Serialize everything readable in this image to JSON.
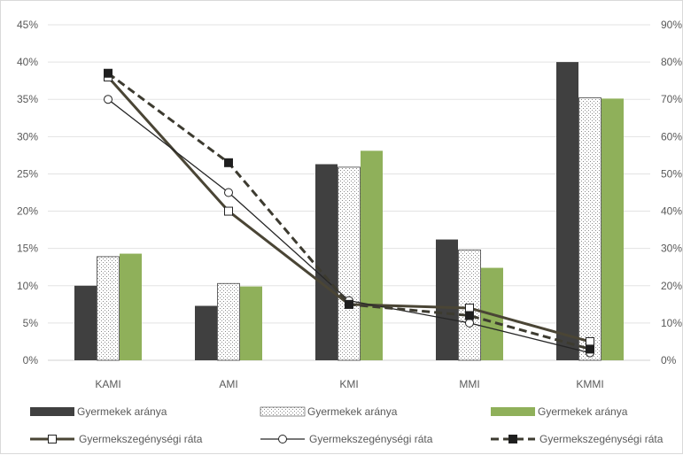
{
  "chart_data": {
    "type": "bar",
    "categories": [
      "KAMI",
      "AMI",
      "KMI",
      "MMI",
      "KMMI"
    ],
    "left_axis": {
      "ylim": [
        0,
        45
      ],
      "ticks": [
        "0%",
        "5%",
        "10%",
        "15%",
        "20%",
        "25%",
        "30%",
        "35%",
        "40%",
        "45%"
      ]
    },
    "right_axis": {
      "ylim": [
        0,
        90
      ],
      "ticks": [
        "0%",
        "10%",
        "20%",
        "30%",
        "40%",
        "50%",
        "60%",
        "70%",
        "80%",
        "90%"
      ]
    },
    "bar_series": [
      {
        "name": "Gyermekek aránya",
        "style": "solid-dark",
        "color": "#404040",
        "values": [
          10.0,
          7.3,
          26.3,
          16.2,
          40.0
        ]
      },
      {
        "name": "Gyermekek aránya",
        "style": "dotted-white",
        "color": "#ffffff",
        "values": [
          13.9,
          10.3,
          25.9,
          14.8,
          35.2
        ]
      },
      {
        "name": "Gyermekek aránya",
        "style": "solid-green",
        "color": "#8fb05a",
        "values": [
          14.3,
          9.9,
          28.1,
          12.4,
          35.1
        ]
      }
    ],
    "line_series": [
      {
        "name": "Gyermekszegénységi ráta",
        "style": "thick-square-open",
        "color": "#4a4535",
        "values": [
          76,
          40,
          15,
          14,
          5
        ]
      },
      {
        "name": "Gyermekszegénységi ráta",
        "style": "thin-circle-open",
        "color": "#262626",
        "values": [
          70,
          45,
          16,
          10,
          2
        ]
      },
      {
        "name": "Gyermekszegénységi ráta",
        "style": "dashed-square-filled",
        "color": "#3d3b30",
        "values": [
          77,
          53,
          15,
          12,
          3
        ]
      }
    ]
  }
}
